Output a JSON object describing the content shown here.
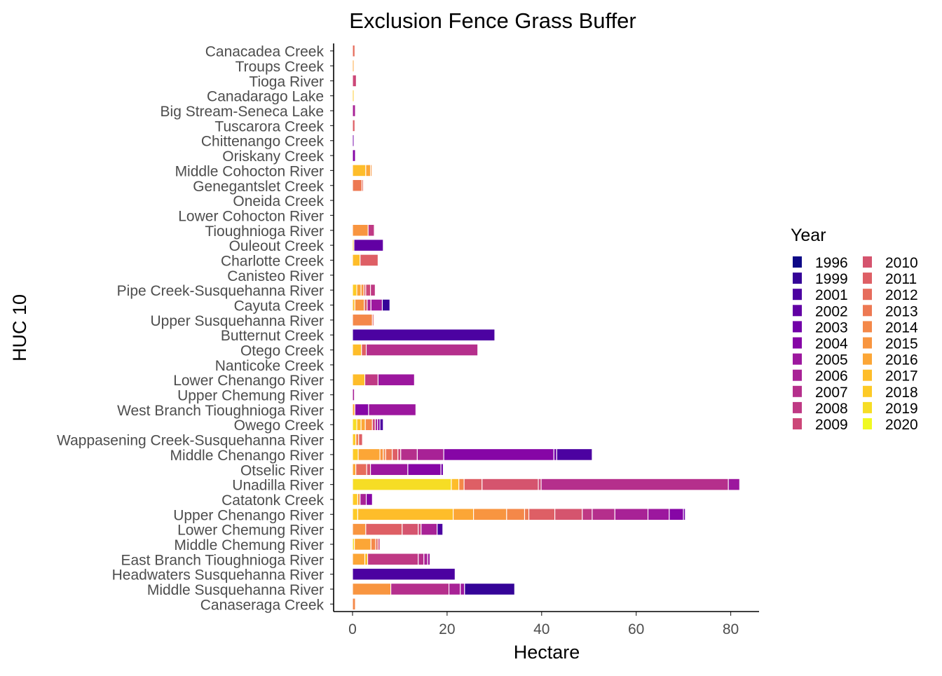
{
  "chart_data": {
    "type": "bar",
    "orientation": "horizontal",
    "stacked": true,
    "title": "Exclusion Fence Grass Buffer",
    "xlabel": "Hectare",
    "ylabel": "HUC 10",
    "xlim": [
      -4,
      86
    ],
    "xticks": [
      0,
      20,
      40,
      60,
      80
    ],
    "legend": {
      "title": "Year",
      "position": "right",
      "columns": 2
    },
    "colors": {
      "1996": "#0d0887",
      "1999": "#350498",
      "2001": "#4c02a1",
      "2002": "#6200a4",
      "2003": "#7201a8",
      "2004": "#8606a6",
      "2005": "#9c179e",
      "2006": "#a82296",
      "2007": "#b52f8c",
      "2008": "#bf3984",
      "2009": "#cc4778",
      "2010": "#d5546e",
      "2011": "#de5f65",
      "2012": "#e66c5c",
      "2013": "#ed7953",
      "2014": "#f48849",
      "2015": "#f89540",
      "2016": "#fca636",
      "2017": "#febd2a",
      "2018": "#fdca26",
      "2019": "#f6dd25",
      "2020": "#f0f921"
    },
    "categories": [
      "Canacadea Creek",
      "Troups Creek",
      "Tioga River",
      "Canadarago Lake",
      "Big Stream-Seneca Lake",
      "Tuscarora Creek",
      "Chittenango Creek",
      "Oriskany Creek",
      "Middle Cohocton River",
      "Genegantslet Creek",
      "Oneida Creek",
      "Lower Cohocton River",
      "Tioughnioga River",
      "Ouleout Creek",
      "Charlotte Creek",
      "Canisteo River",
      "Pipe Creek-Susquehanna River",
      "Cayuta Creek",
      "Upper Susquehanna River",
      "Butternut Creek",
      "Otego Creek",
      "Nanticoke Creek",
      "Lower Chenango River",
      "Upper Chemung River",
      "West Branch Tioughnioga River",
      "Owego Creek",
      "Wappasening Creek-Susquehanna River",
      "Middle Chenango River",
      "Otselic River",
      "Unadilla River",
      "Catatonk Creek",
      "Upper Chenango River",
      "Lower Chemung River",
      "Middle Chemung River",
      "East Branch Tioughnioga River",
      "Headwaters Susquehanna River",
      "Middle Susquehanna River",
      "Canaseraga Creek"
    ],
    "bars": [
      {
        "category": "Canacadea Creek",
        "segments": [
          {
            "year": "2012",
            "value": 0.5
          }
        ]
      },
      {
        "category": "Troups Creek",
        "segments": [
          {
            "year": "2016",
            "value": 0.3
          }
        ]
      },
      {
        "category": "Tioga River",
        "segments": [
          {
            "year": "2009",
            "value": 0.8
          }
        ]
      },
      {
        "category": "Canadarago Lake",
        "segments": [
          {
            "year": "2018",
            "value": 0.3
          }
        ]
      },
      {
        "category": "Big Stream-Seneca Lake",
        "segments": [
          {
            "year": "2006",
            "value": 0.6
          }
        ]
      },
      {
        "category": "Tuscarora Creek",
        "segments": [
          {
            "year": "2011",
            "value": 0.5
          }
        ]
      },
      {
        "category": "Chittenango Creek",
        "segments": [
          {
            "year": "2003",
            "value": 0.3
          }
        ]
      },
      {
        "category": "Oriskany Creek",
        "segments": [
          {
            "year": "2004",
            "value": 0.6
          }
        ]
      },
      {
        "category": "Middle Cohocton River",
        "segments": [
          {
            "year": "2017",
            "value": 2.8
          },
          {
            "year": "2016",
            "value": 1.0
          },
          {
            "year": "2015",
            "value": 0.3
          }
        ]
      },
      {
        "category": "Genegantslet Creek",
        "segments": [
          {
            "year": "2013",
            "value": 2.0
          },
          {
            "year": "2012",
            "value": 0.3
          }
        ]
      },
      {
        "category": "Oneida Creek",
        "segments": []
      },
      {
        "category": "Lower Cohocton River",
        "segments": []
      },
      {
        "category": "Tioughnioga River",
        "segments": [
          {
            "year": "2015",
            "value": 3.3
          },
          {
            "year": "2008",
            "value": 1.3
          }
        ]
      },
      {
        "category": "Ouleout Creek",
        "segments": [
          {
            "year": "2017",
            "value": 0.3
          },
          {
            "year": "2002",
            "value": 6.2
          }
        ]
      },
      {
        "category": "Charlotte Creek",
        "segments": [
          {
            "year": "2017",
            "value": 1.6
          },
          {
            "year": "2011",
            "value": 3.8
          }
        ]
      },
      {
        "category": "Canisteo River",
        "segments": []
      },
      {
        "category": "Pipe Creek-Susquehanna River",
        "segments": [
          {
            "year": "2018",
            "value": 0.9
          },
          {
            "year": "2016",
            "value": 0.9
          },
          {
            "year": "2015",
            "value": 0.6
          },
          {
            "year": "2011",
            "value": 0.4
          },
          {
            "year": "2009",
            "value": 1.0
          },
          {
            "year": "2008",
            "value": 1.0
          }
        ]
      },
      {
        "category": "Cayuta Creek",
        "segments": [
          {
            "year": "2017",
            "value": 0.5
          },
          {
            "year": "2015",
            "value": 2.0
          },
          {
            "year": "2011",
            "value": 0.6
          },
          {
            "year": "2006",
            "value": 0.8
          },
          {
            "year": "2005",
            "value": 2.4
          },
          {
            "year": "1999",
            "value": 1.6
          }
        ]
      },
      {
        "category": "Upper Susquehanna River",
        "segments": [
          {
            "year": "2014",
            "value": 4.2
          },
          {
            "year": "2011",
            "value": 0.3
          }
        ]
      },
      {
        "category": "Butternut Creek",
        "segments": [
          {
            "year": "2001",
            "value": 30.1
          }
        ]
      },
      {
        "category": "Otego Creek",
        "segments": [
          {
            "year": "2017",
            "value": 1.9
          },
          {
            "year": "2011",
            "value": 1.0
          },
          {
            "year": "2007",
            "value": 23.6
          }
        ]
      },
      {
        "category": "Nanticoke Creek",
        "segments": []
      },
      {
        "category": "Lower Chenango River",
        "segments": [
          {
            "year": "2017",
            "value": 2.6
          },
          {
            "year": "2008",
            "value": 2.8
          },
          {
            "year": "2005",
            "value": 7.7
          }
        ]
      },
      {
        "category": "Upper Chemung River",
        "segments": [
          {
            "year": "2006",
            "value": 0.4
          }
        ]
      },
      {
        "category": "West Branch Tioughnioga River",
        "segments": [
          {
            "year": "2016",
            "value": 0.5
          },
          {
            "year": "2004",
            "value": 2.9
          },
          {
            "year": "2005",
            "value": 10.0
          }
        ]
      },
      {
        "category": "Owego Creek",
        "segments": [
          {
            "year": "2019",
            "value": 0.9
          },
          {
            "year": "2017",
            "value": 0.9
          },
          {
            "year": "2016",
            "value": 0.9
          },
          {
            "year": "2014",
            "value": 1.5
          },
          {
            "year": "2009",
            "value": 0.6
          },
          {
            "year": "2006",
            "value": 0.5
          },
          {
            "year": "2004",
            "value": 0.5
          },
          {
            "year": "2001",
            "value": 0.7
          }
        ]
      },
      {
        "category": "Wappasening Creek-Susquehanna River",
        "segments": [
          {
            "year": "2018",
            "value": 0.7
          },
          {
            "year": "2014",
            "value": 0.6
          },
          {
            "year": "2011",
            "value": 0.8
          }
        ]
      },
      {
        "category": "Middle Chenango River",
        "segments": [
          {
            "year": "2018",
            "value": 1.2
          },
          {
            "year": "2016",
            "value": 4.6
          },
          {
            "year": "2015",
            "value": 0.7
          },
          {
            "year": "2014",
            "value": 0.5
          },
          {
            "year": "2013",
            "value": 1.4
          },
          {
            "year": "2011",
            "value": 1.2
          },
          {
            "year": "2009",
            "value": 0.6
          },
          {
            "year": "2007",
            "value": 3.5
          },
          {
            "year": "2006",
            "value": 5.6
          },
          {
            "year": "2004",
            "value": 23.3
          },
          {
            "year": "2003",
            "value": 0.6
          },
          {
            "year": "2001",
            "value": 7.5
          }
        ]
      },
      {
        "category": "Otselic River",
        "segments": [
          {
            "year": "2016",
            "value": 0.7
          },
          {
            "year": "2012",
            "value": 2.3
          },
          {
            "year": "2010",
            "value": 0.8
          },
          {
            "year": "2005",
            "value": 7.9
          },
          {
            "year": "2004",
            "value": 7.0
          },
          {
            "year": "2003",
            "value": 0.5
          }
        ]
      },
      {
        "category": "Unadilla River",
        "segments": [
          {
            "year": "2019",
            "value": 20.9
          },
          {
            "year": "2017",
            "value": 1.6
          },
          {
            "year": "2014",
            "value": 1.1
          },
          {
            "year": "2011",
            "value": 3.8
          },
          {
            "year": "2010",
            "value": 11.9
          },
          {
            "year": "2009",
            "value": 0.6
          },
          {
            "year": "2007",
            "value": 39.6
          },
          {
            "year": "2005",
            "value": 2.4
          }
        ]
      },
      {
        "category": "Catatonk Creek",
        "segments": [
          {
            "year": "2018",
            "value": 1.1
          },
          {
            "year": "2015",
            "value": 0.5
          },
          {
            "year": "2006",
            "value": 1.3
          },
          {
            "year": "2004",
            "value": 1.3
          }
        ]
      },
      {
        "category": "Upper Chenango River",
        "segments": [
          {
            "year": "2018",
            "value": 1.1
          },
          {
            "year": "2017",
            "value": 20.2
          },
          {
            "year": "2016",
            "value": 4.3
          },
          {
            "year": "2015",
            "value": 7.0
          },
          {
            "year": "2014",
            "value": 3.8
          },
          {
            "year": "2013",
            "value": 0.9
          },
          {
            "year": "2011",
            "value": 5.5
          },
          {
            "year": "2010",
            "value": 5.8
          },
          {
            "year": "2008",
            "value": 2.1
          },
          {
            "year": "2007",
            "value": 4.8
          },
          {
            "year": "2006",
            "value": 7.0
          },
          {
            "year": "2005",
            "value": 4.5
          },
          {
            "year": "2004",
            "value": 3.0
          },
          {
            "year": "2003",
            "value": 0.4
          }
        ]
      },
      {
        "category": "Lower Chemung River",
        "segments": [
          {
            "year": "2015",
            "value": 2.8
          },
          {
            "year": "2011",
            "value": 7.7
          },
          {
            "year": "2010",
            "value": 3.4
          },
          {
            "year": "2009",
            "value": 0.6
          },
          {
            "year": "2006",
            "value": 3.4
          },
          {
            "year": "2001",
            "value": 1.2
          }
        ]
      },
      {
        "category": "Middle Chemung River",
        "segments": [
          {
            "year": "2019",
            "value": 0.4
          },
          {
            "year": "2016",
            "value": 3.5
          },
          {
            "year": "2014",
            "value": 1.0
          },
          {
            "year": "2012",
            "value": 0.5
          },
          {
            "year": "2009",
            "value": 0.4
          }
        ]
      },
      {
        "category": "East Branch Tioughnioga River",
        "segments": [
          {
            "year": "2016",
            "value": 2.6
          },
          {
            "year": "2017",
            "value": 0.6
          },
          {
            "year": "2008",
            "value": 10.7
          },
          {
            "year": "2007",
            "value": 1.2
          },
          {
            "year": "2006",
            "value": 0.8
          },
          {
            "year": "2005",
            "value": 0.5
          }
        ]
      },
      {
        "category": "Headwaters Susquehanna River",
        "segments": [
          {
            "year": "2001",
            "value": 21.7
          }
        ]
      },
      {
        "category": "Middle Susquehanna River",
        "segments": [
          {
            "year": "2015",
            "value": 8.1
          },
          {
            "year": "2007",
            "value": 12.3
          },
          {
            "year": "2006",
            "value": 2.4
          },
          {
            "year": "2005",
            "value": 0.9
          },
          {
            "year": "1999",
            "value": 10.6
          }
        ]
      },
      {
        "category": "Canaseraga Creek",
        "segments": [
          {
            "year": "2014",
            "value": 0.6
          }
        ]
      }
    ]
  }
}
